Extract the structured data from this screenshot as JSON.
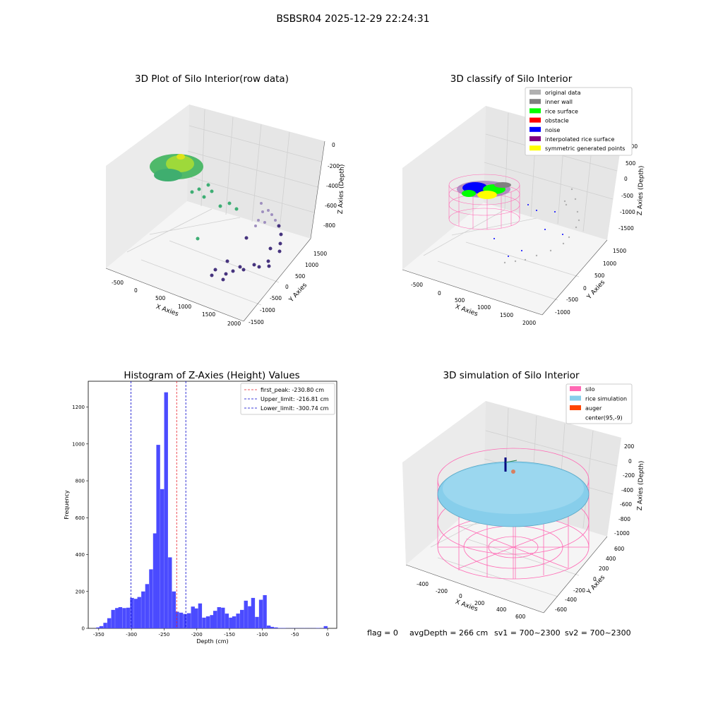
{
  "figure_title": "BSBSR04 2025-12-29 22:24:31",
  "status_line": {
    "flag": "flag = 0",
    "avg_depth": "avgDepth = 266 cm",
    "sv1": "sv1 = 700~2300",
    "sv2": "sv2 = 700~2300"
  },
  "colors": {
    "hist_bar": "#4b4bff",
    "peak_line": "#e8212b",
    "limit_line": "#0000cc",
    "silo": "#ff69b4",
    "rice_sim": "#87ceeb",
    "auger": "#ff4500",
    "original": "#b0b0b0",
    "inner_wall": "#808080",
    "rice_surface": "#00ff00",
    "obstacle": "#ff0000",
    "noise": "#0000ff",
    "interp": "#800080",
    "sym": "#ffff00"
  },
  "chart_data": [
    {
      "type": "scatter",
      "projection": "3d",
      "title": "3D Plot of Silo Interior(row data)",
      "xlabel": "X Axies",
      "ylabel": "Y Axies",
      "zlabel": "Z Axies (Depth)",
      "xticks": [
        "-500",
        "0",
        "500",
        "1000",
        "1500",
        "2000"
      ],
      "yticks": [
        "-1500",
        "-1000",
        "-500",
        "0",
        "500",
        "1000",
        "1500"
      ],
      "zticks": [
        "0",
        "-200",
        "-400",
        "-600",
        "-800"
      ],
      "colormap": "viridis",
      "grid": true
    },
    {
      "type": "scatter",
      "projection": "3d",
      "title": "3D classify of Silo Interior",
      "xlabel": "X Axies",
      "ylabel": "Y Axies",
      "zlabel": "Z Axies (Depth)",
      "xticks": [
        "-500",
        "0",
        "500",
        "1000",
        "1500",
        "2000"
      ],
      "yticks": [
        "-1000",
        "-500",
        "0",
        "500",
        "1000",
        "1500"
      ],
      "zticks": [
        "1000",
        "500",
        "0",
        "-500",
        "-1000",
        "-1500"
      ],
      "legend_position": "top-right",
      "legend": [
        {
          "label": "original data",
          "color": "#b0b0b0"
        },
        {
          "label": "inner wall",
          "color": "#808080"
        },
        {
          "label": "rice surface",
          "color": "#00ff00"
        },
        {
          "label": "obstacle",
          "color": "#ff0000"
        },
        {
          "label": "noise",
          "color": "#0000ff"
        },
        {
          "label": "interpolated rice surface",
          "color": "#800080"
        },
        {
          "label": "symmetric generated points",
          "color": "#ffff00"
        }
      ],
      "grid": true
    },
    {
      "type": "bar",
      "title": "Histogram of Z-Axies (Height) Values",
      "xlabel": "Depth (cm)",
      "ylabel": "Frequency",
      "xlim": [
        -366,
        14
      ],
      "ylim": [
        0,
        1340
      ],
      "xticks": [
        -350,
        -300,
        -250,
        -200,
        -150,
        -100,
        -50,
        0
      ],
      "yticks": [
        0,
        200,
        400,
        600,
        800,
        1000,
        1200
      ],
      "bin_width": 5.8,
      "bins": [
        {
          "x": -351,
          "count": 5
        },
        {
          "x": -346,
          "count": 12
        },
        {
          "x": -340,
          "count": 30
        },
        {
          "x": -334,
          "count": 55
        },
        {
          "x": -328,
          "count": 100
        },
        {
          "x": -322,
          "count": 110
        },
        {
          "x": -317,
          "count": 115
        },
        {
          "x": -311,
          "count": 110
        },
        {
          "x": -305,
          "count": 112
        },
        {
          "x": -299,
          "count": 165
        },
        {
          "x": -293,
          "count": 160
        },
        {
          "x": -288,
          "count": 170
        },
        {
          "x": -282,
          "count": 200
        },
        {
          "x": -276,
          "count": 240
        },
        {
          "x": -270,
          "count": 320
        },
        {
          "x": -264,
          "count": 515
        },
        {
          "x": -259,
          "count": 995
        },
        {
          "x": -253,
          "count": 755
        },
        {
          "x": -247,
          "count": 1280
        },
        {
          "x": -241,
          "count": 385
        },
        {
          "x": -235,
          "count": 200
        },
        {
          "x": -230,
          "count": 90
        },
        {
          "x": -224,
          "count": 85
        },
        {
          "x": -218,
          "count": 78
        },
        {
          "x": -212,
          "count": 82
        },
        {
          "x": -206,
          "count": 118
        },
        {
          "x": -201,
          "count": 108
        },
        {
          "x": -195,
          "count": 135
        },
        {
          "x": -189,
          "count": 58
        },
        {
          "x": -183,
          "count": 65
        },
        {
          "x": -177,
          "count": 72
        },
        {
          "x": -172,
          "count": 95
        },
        {
          "x": -166,
          "count": 115
        },
        {
          "x": -160,
          "count": 112
        },
        {
          "x": -154,
          "count": 80
        },
        {
          "x": -148,
          "count": 58
        },
        {
          "x": -143,
          "count": 65
        },
        {
          "x": -137,
          "count": 80
        },
        {
          "x": -131,
          "count": 100
        },
        {
          "x": -125,
          "count": 150
        },
        {
          "x": -119,
          "count": 120
        },
        {
          "x": -114,
          "count": 165
        },
        {
          "x": -108,
          "count": 62
        },
        {
          "x": -102,
          "count": 155
        },
        {
          "x": -96,
          "count": 180
        },
        {
          "x": -90,
          "count": 15
        },
        {
          "x": -85,
          "count": 8
        },
        {
          "x": -79,
          "count": 5
        },
        {
          "x": -73,
          "count": 2
        },
        {
          "x": -67,
          "count": 2
        },
        {
          "x": -62,
          "count": 1
        },
        {
          "x": -56,
          "count": 1
        },
        {
          "x": -50,
          "count": 1
        },
        {
          "x": -44,
          "count": 1
        },
        {
          "x": -38,
          "count": 1
        },
        {
          "x": -33,
          "count": 1
        },
        {
          "x": -27,
          "count": 1
        },
        {
          "x": -21,
          "count": 1
        },
        {
          "x": -15,
          "count": 2
        },
        {
          "x": -9,
          "count": 1
        },
        {
          "x": -3,
          "count": 12
        }
      ],
      "vlines": [
        {
          "x": -230.8,
          "label": "first_peak: -230.80 cm",
          "color": "#e8212b"
        },
        {
          "x": -216.81,
          "label": "Upper_limit: -216.81 cm",
          "color": "#0000cc"
        },
        {
          "x": -300.74,
          "label": "Lower_limit: -300.74 cm",
          "color": "#0000cc"
        }
      ],
      "legend_position": "top-right"
    },
    {
      "type": "surface",
      "projection": "3d",
      "title": "3D simulation of Silo Interior",
      "xlabel": "X Axies",
      "ylabel": "Y Axies",
      "zlabel": "Z Axies (Depth)",
      "xticks": [
        "-400",
        "-200",
        "0",
        "200",
        "400",
        "600"
      ],
      "yticks": [
        "-600",
        "-400",
        "-200",
        "0",
        "200",
        "400",
        "600"
      ],
      "zticks": [
        "200",
        "0",
        "-200",
        "-400",
        "-600",
        "-800",
        "-1000"
      ],
      "legend_position": "top-right",
      "legend": [
        {
          "label": "silo",
          "color": "#ff69b4"
        },
        {
          "label": "rice simulation",
          "color": "#87ceeb"
        },
        {
          "label": "auger",
          "color": "#ff4500"
        },
        {
          "label": "center(95,-9)",
          "color": "#ffffff"
        }
      ],
      "grid": true
    }
  ]
}
